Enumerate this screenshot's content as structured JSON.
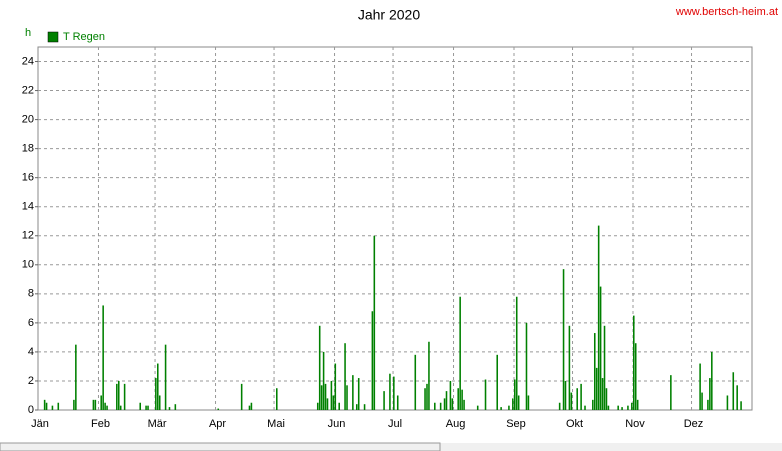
{
  "chart_data": {
    "type": "bar",
    "title": "Jahr 2020",
    "source": "www.bertsch-heim.at",
    "y_label": "h",
    "series": [
      {
        "name": "T Regen",
        "color": "#008000",
        "x": [
          3,
          4,
          7,
          10,
          18,
          19,
          28,
          29,
          32,
          33,
          34,
          35,
          40,
          41,
          42,
          44,
          52,
          55,
          56,
          60,
          61,
          62,
          65,
          67,
          70,
          92,
          104,
          108,
          109,
          122,
          143,
          144,
          145,
          146,
          147,
          148,
          150,
          151,
          152,
          154,
          157,
          158,
          161,
          163,
          164,
          167,
          171,
          172,
          177,
          180,
          182,
          184,
          193,
          198,
          199,
          200,
          203,
          206,
          208,
          209,
          211,
          212,
          215,
          216,
          217,
          218,
          225,
          229,
          235,
          237,
          241,
          243,
          244,
          245,
          246,
          250,
          251,
          267,
          269,
          270,
          272,
          273,
          276,
          278,
          280,
          284,
          285,
          286,
          287,
          288,
          289,
          290,
          291,
          292,
          297,
          299,
          302,
          304,
          305,
          306,
          307,
          324,
          339,
          340,
          343,
          344,
          345,
          353,
          356,
          358,
          360
        ],
        "values": [
          0.7,
          0.5,
          0.3,
          0.5,
          0.7,
          4.5,
          0.7,
          0.7,
          1.0,
          7.2,
          0.5,
          0.3,
          1.8,
          2.0,
          0.3,
          1.8,
          0.5,
          0.3,
          0.3,
          2.2,
          3.2,
          1.0,
          4.5,
          0.2,
          0.4,
          0.1,
          1.8,
          0.3,
          0.5,
          1.5,
          0.5,
          5.8,
          1.7,
          4.0,
          1.8,
          0.8,
          2.0,
          1.0,
          3.2,
          0.5,
          4.6,
          1.7,
          2.4,
          0.4,
          2.2,
          0.4,
          6.8,
          12.0,
          1.3,
          2.5,
          2.3,
          1.0,
          3.8,
          1.5,
          1.8,
          4.7,
          0.5,
          0.5,
          0.8,
          1.3,
          2.0,
          0.8,
          1.5,
          7.8,
          1.4,
          0.7,
          0.3,
          2.1,
          3.8,
          0.2,
          0.3,
          0.8,
          2.1,
          7.8,
          1.0,
          6.0,
          1.0,
          0.5,
          9.7,
          2.0,
          5.8,
          1.2,
          1.5,
          1.8,
          0.3,
          0.7,
          5.3,
          2.9,
          12.7,
          8.5,
          2.2,
          5.8,
          1.5,
          0.3,
          0.3,
          0.2,
          0.3,
          0.5,
          6.5,
          4.6,
          0.7,
          2.4,
          3.2,
          1.2,
          0.7,
          2.2,
          4.0,
          1.0,
          2.6,
          1.7,
          0.6
        ]
      }
    ],
    "xlim": [
      0,
      366
    ],
    "xticks": [
      {
        "value": 0,
        "label": "Jän"
      },
      {
        "value": 31,
        "label": "Feb"
      },
      {
        "value": 60,
        "label": "Mär"
      },
      {
        "value": 91,
        "label": "Apr"
      },
      {
        "value": 121,
        "label": "Mai"
      },
      {
        "value": 152,
        "label": "Jun"
      },
      {
        "value": 182,
        "label": "Jul"
      },
      {
        "value": 213,
        "label": "Aug"
      },
      {
        "value": 244,
        "label": "Sep"
      },
      {
        "value": 274,
        "label": "Okt"
      },
      {
        "value": 305,
        "label": "Nov"
      },
      {
        "value": 335,
        "label": "Dez"
      }
    ],
    "ylim": [
      0,
      25
    ],
    "yticks": [
      0,
      2,
      4,
      6,
      8,
      10,
      12,
      14,
      16,
      18,
      20,
      22,
      24
    ],
    "grid": true
  }
}
